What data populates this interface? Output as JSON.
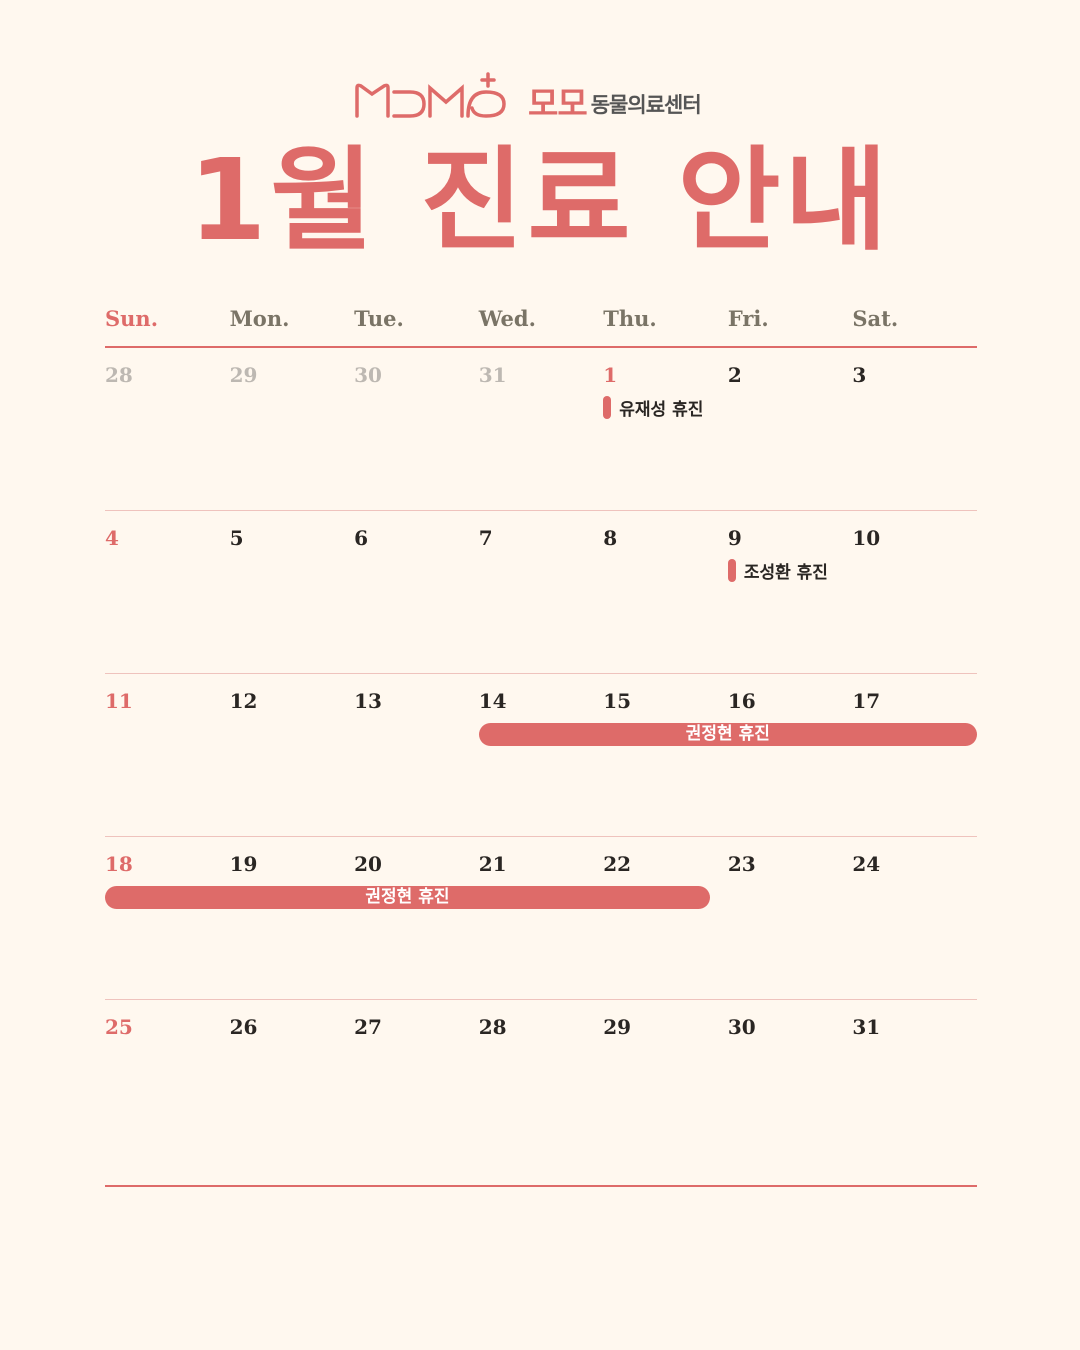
{
  "brand": {
    "logo_text": "MOMO",
    "name_ko": "모모",
    "subtitle": "동물의료센터",
    "color": "#de6b69"
  },
  "title": "1월 진료 안내",
  "weekdays": [
    "Sun.",
    "Mon.",
    "Tue.",
    "Wed.",
    "Thu.",
    "Fri.",
    "Sat."
  ],
  "weeks": [
    {
      "days": [
        {
          "d": "28",
          "other": true
        },
        {
          "d": "29",
          "other": true
        },
        {
          "d": "30",
          "other": true
        },
        {
          "d": "31",
          "other": true
        },
        {
          "d": "1",
          "holiday": true,
          "event": "유재성 휴진"
        },
        {
          "d": "2"
        },
        {
          "d": "3"
        }
      ]
    },
    {
      "days": [
        {
          "d": "4"
        },
        {
          "d": "5"
        },
        {
          "d": "6"
        },
        {
          "d": "7"
        },
        {
          "d": "8"
        },
        {
          "d": "9",
          "event": "조성환 휴진"
        },
        {
          "d": "10"
        }
      ]
    },
    {
      "days": [
        {
          "d": "11"
        },
        {
          "d": "12"
        },
        {
          "d": "13"
        },
        {
          "d": "14"
        },
        {
          "d": "15"
        },
        {
          "d": "16"
        },
        {
          "d": "17"
        }
      ],
      "range": {
        "label": "권정현 휴진",
        "start": 3,
        "end": 6
      }
    },
    {
      "days": [
        {
          "d": "18"
        },
        {
          "d": "19"
        },
        {
          "d": "20"
        },
        {
          "d": "21"
        },
        {
          "d": "22"
        },
        {
          "d": "23"
        },
        {
          "d": "24"
        }
      ],
      "range": {
        "label": "권정현 휴진",
        "start": 0,
        "end": 4
      }
    },
    {
      "days": [
        {
          "d": "25"
        },
        {
          "d": "26"
        },
        {
          "d": "27"
        },
        {
          "d": "28"
        },
        {
          "d": "29"
        },
        {
          "d": "30"
        },
        {
          "d": "31"
        }
      ]
    }
  ]
}
